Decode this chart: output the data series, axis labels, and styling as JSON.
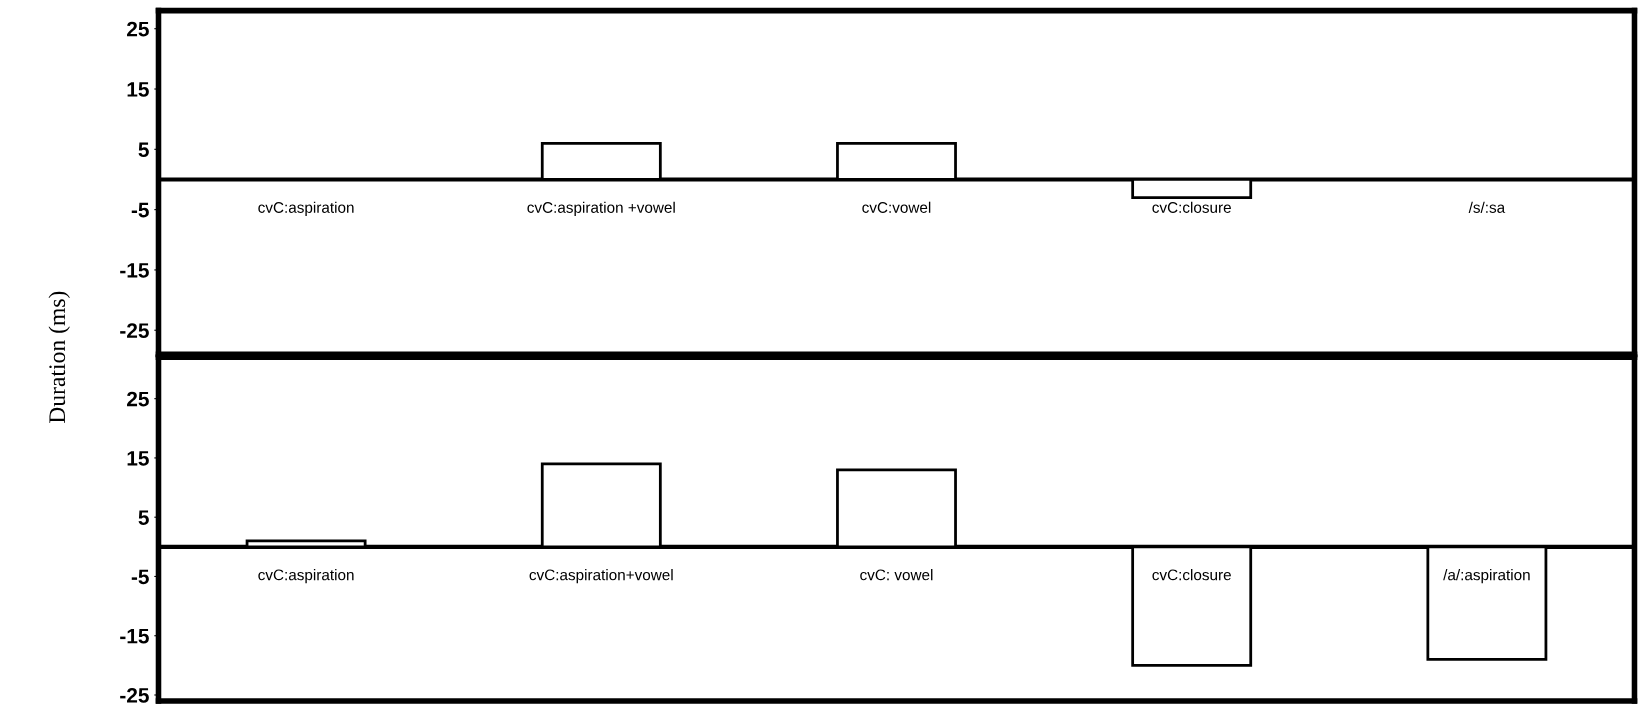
{
  "chart_data": [
    {
      "type": "bar",
      "categories": [
        "cvC:aspiration",
        "cvC:aspiration +vowel",
        "cvC:vowel",
        "cvC:closure",
        "/s/:sa"
      ],
      "values": [
        0,
        6,
        6,
        -3,
        0
      ],
      "color": "#ffffff",
      "ylim": [
        -29,
        28
      ],
      "yticks": [
        25,
        15,
        5,
        -5,
        -15,
        -25
      ],
      "grid": false,
      "legend": false
    },
    {
      "type": "bar",
      "categories": [
        "cvC:aspiration",
        "cvC:aspiration+vowel",
        "cvC: vowel",
        "cvC:closure",
        "/a/:aspiration"
      ],
      "values": [
        1,
        14,
        13,
        -20,
        -19
      ],
      "color": "#ffffff",
      "ylim": [
        -26,
        32
      ],
      "yticks": [
        25,
        15,
        5,
        -5,
        -15,
        -25
      ],
      "ylabel": "Duration (ms)",
      "grid": false,
      "legend": false
    }
  ]
}
